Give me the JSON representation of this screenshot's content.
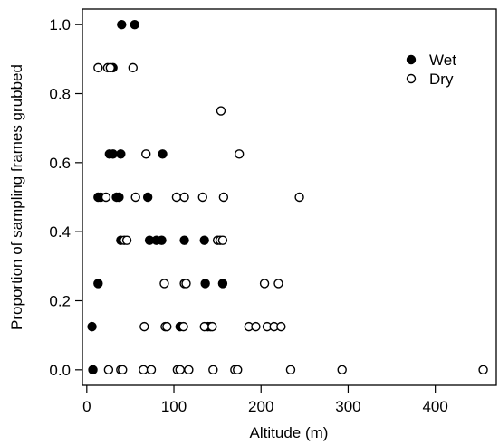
{
  "chart_data": {
    "type": "scatter",
    "xlabel": "Altitude (m)",
    "ylabel": "Proportion of sampling frames grubbed",
    "xlim": [
      -5,
      470
    ],
    "ylim": [
      -0.045,
      1.045
    ],
    "x_ticks": [
      0,
      100,
      200,
      300,
      400
    ],
    "y_ticks": [
      0.0,
      0.2,
      0.4,
      0.6,
      0.8,
      1.0
    ],
    "x_tick_labels": [
      "0",
      "100",
      "200",
      "300",
      "400"
    ],
    "y_tick_labels": [
      "0.0",
      "0.2",
      "0.4",
      "0.6",
      "0.8",
      "1.0"
    ],
    "legend_position": "top-right",
    "grid": false,
    "series": [
      {
        "name": "Wet",
        "marker": "filled-circle",
        "color": "#000000",
        "points": [
          [
            7,
            0.0
          ],
          [
            6,
            0.125
          ],
          [
            13,
            0.25
          ],
          [
            13,
            0.5
          ],
          [
            16,
            0.5
          ],
          [
            34,
            0.5
          ],
          [
            37,
            0.5
          ],
          [
            70,
            0.5
          ],
          [
            26,
            0.625
          ],
          [
            30,
            0.625
          ],
          [
            39,
            0.625
          ],
          [
            87,
            0.625
          ],
          [
            39,
            0.375
          ],
          [
            72,
            0.375
          ],
          [
            80,
            0.375
          ],
          [
            86,
            0.375
          ],
          [
            112,
            0.375
          ],
          [
            135,
            0.375
          ],
          [
            107,
            0.125
          ],
          [
            139,
            0.125
          ],
          [
            142,
            0.125
          ],
          [
            136,
            0.25
          ],
          [
            156,
            0.25
          ],
          [
            30,
            0.875
          ],
          [
            40,
            1.0
          ],
          [
            55,
            1.0
          ]
        ]
      },
      {
        "name": "Dry",
        "marker": "open-circle",
        "color": "#000000",
        "points": [
          [
            25,
            0.0
          ],
          [
            39,
            0.0
          ],
          [
            41,
            0.0
          ],
          [
            65,
            0.0
          ],
          [
            74,
            0.0
          ],
          [
            104,
            0.0
          ],
          [
            107,
            0.0
          ],
          [
            117,
            0.0
          ],
          [
            145,
            0.0
          ],
          [
            170,
            0.0
          ],
          [
            173,
            0.0
          ],
          [
            234,
            0.0
          ],
          [
            293,
            0.0
          ],
          [
            455,
            0.0
          ],
          [
            66,
            0.125
          ],
          [
            90,
            0.125
          ],
          [
            92,
            0.125
          ],
          [
            111,
            0.125
          ],
          [
            135,
            0.125
          ],
          [
            144,
            0.125
          ],
          [
            186,
            0.125
          ],
          [
            194,
            0.125
          ],
          [
            207,
            0.125
          ],
          [
            215,
            0.125
          ],
          [
            223,
            0.125
          ],
          [
            89,
            0.25
          ],
          [
            112,
            0.25
          ],
          [
            114,
            0.25
          ],
          [
            204,
            0.25
          ],
          [
            220,
            0.25
          ],
          [
            43,
            0.375
          ],
          [
            46,
            0.375
          ],
          [
            150,
            0.375
          ],
          [
            153,
            0.375
          ],
          [
            156,
            0.375
          ],
          [
            22,
            0.5
          ],
          [
            56,
            0.5
          ],
          [
            103,
            0.5
          ],
          [
            112,
            0.5
          ],
          [
            133,
            0.5
          ],
          [
            157,
            0.5
          ],
          [
            244,
            0.5
          ],
          [
            68,
            0.625
          ],
          [
            175,
            0.625
          ],
          [
            13,
            0.875
          ],
          [
            24,
            0.875
          ],
          [
            27,
            0.875
          ],
          [
            53,
            0.875
          ],
          [
            154,
            0.75
          ]
        ]
      }
    ]
  }
}
